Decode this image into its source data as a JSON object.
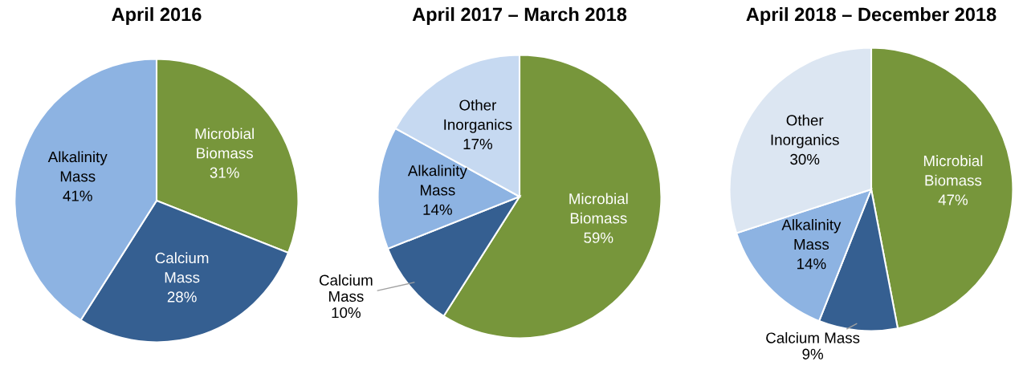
{
  "chart_data": [
    {
      "type": "pie",
      "title": "April 2016",
      "categories": [
        "Microbial\nBiomass",
        "Calcium\nMass",
        "Alkalinity\nMass"
      ],
      "values": [
        31,
        28,
        41
      ],
      "value_labels": [
        "31%",
        "28%",
        "41%"
      ],
      "colors": [
        "#77963b",
        "#355f91",
        "#8db3e2"
      ]
    },
    {
      "type": "pie",
      "title": "April 2017 – March 2018",
      "categories": [
        "Microbial\nBiomass",
        "Calcium\nMass",
        "Alkalinity\nMass",
        "Other\nInorganics"
      ],
      "values": [
        59,
        10,
        14,
        17
      ],
      "value_labels": [
        "59%",
        "10%",
        "14%",
        "17%"
      ],
      "colors": [
        "#77963b",
        "#355f91",
        "#8db3e2",
        "#c6d9f1"
      ]
    },
    {
      "type": "pie",
      "title": "April 2018 – December 2018",
      "categories": [
        "Microbial\nBiomass",
        "Calcium Mass",
        "Alkalinity\nMass",
        "Other\nInorganics"
      ],
      "values": [
        47,
        9,
        14,
        30
      ],
      "value_labels": [
        "47%",
        "9%",
        "14%",
        "30%"
      ],
      "colors": [
        "#77963b",
        "#355f91",
        "#8db3e2",
        "#dce6f2"
      ]
    }
  ]
}
